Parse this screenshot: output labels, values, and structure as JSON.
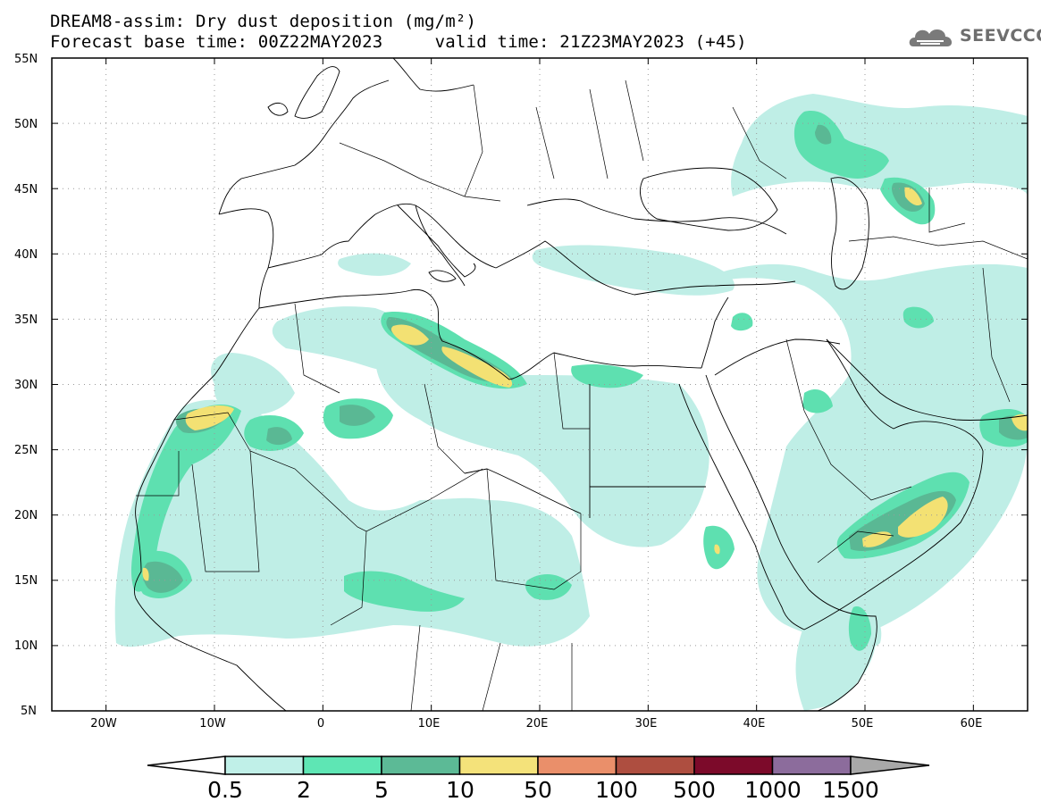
{
  "header": {
    "title_line1": "DREAM8-assim: Dry dust deposition (mg/m²)",
    "title_line2": "Forecast base time: 00Z22MAY2023     valid time: 21Z23MAY2023 (+45)",
    "logo_text": "SEEVCCC"
  },
  "map": {
    "lon_range": [
      -25,
      65
    ],
    "lat_range": [
      5,
      55
    ],
    "lat_labels": [
      "55N",
      "50N",
      "45N",
      "40N",
      "35N",
      "30N",
      "25N",
      "20N",
      "15N",
      "10N",
      "5N"
    ],
    "lon_labels": [
      "20W",
      "10W",
      "0",
      "10E",
      "20E",
      "30E",
      "40E",
      "50E",
      "60E"
    ],
    "colors": {
      "level_0_5": "#bfeee6",
      "level_2": "#5ee0b0",
      "level_5": "#5ab894",
      "level_10": "#f3e173",
      "coast": "#000000"
    }
  },
  "colorbar": {
    "labels": [
      "0.5",
      "2",
      "5",
      "10",
      "50",
      "100",
      "500",
      "1000",
      "1500"
    ],
    "colors": [
      "#c0f0e8",
      "#5ee6b4",
      "#5cba96",
      "#f4e27a",
      "#ea8f6a",
      "#ae4e40",
      "#7c0a2a",
      "#8c6c9c"
    ],
    "over_color": "#a8a8a8",
    "under_color": "#ffffff"
  }
}
